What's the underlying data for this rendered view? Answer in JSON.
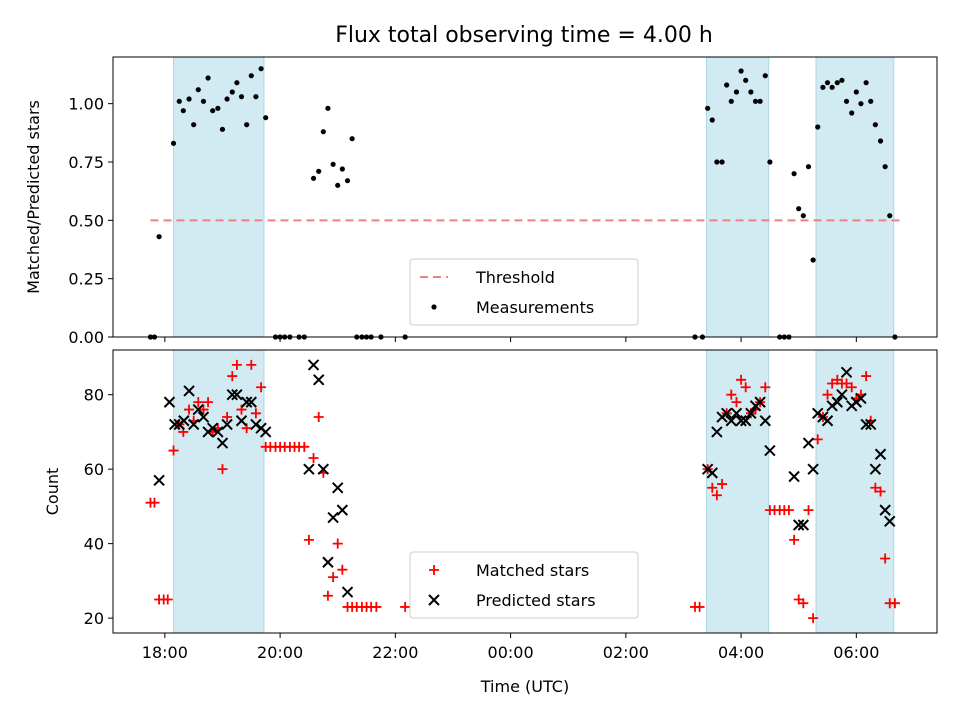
{
  "figure": {
    "title": "Flux total observing time = 4.00 h"
  },
  "colors": {
    "band": "#add8e6",
    "threshold": "#f08080",
    "measurement": "#000000",
    "matched": "#ff0000",
    "predicted": "#000000"
  },
  "chart_data": [
    {
      "type": "scatter",
      "panel": "top",
      "title": "Flux total observing time = 4.00 h",
      "ylabel": "Matched/Predicted stars",
      "xlabel": "",
      "x_unit": "hours since 00:00 UTC (negative = previous day)",
      "xlim": [
        -6.9,
        7.4
      ],
      "ylim": [
        0,
        1.2
      ],
      "yticks": [
        "0.00",
        "0.25",
        "0.50",
        "0.75",
        "1.00"
      ],
      "ytick_values": [
        0,
        0.25,
        0.5,
        0.75,
        1.0
      ],
      "legend": {
        "placement": "lower-center",
        "entries": [
          "Threshold",
          "Measurements"
        ]
      },
      "shaded_intervals": [
        [
          -5.85,
          -4.28
        ],
        [
          3.4,
          4.48
        ],
        [
          5.3,
          6.65
        ]
      ],
      "threshold": {
        "name": "Threshold",
        "y": 0.5,
        "x_range": [
          -6.25,
          6.75
        ]
      },
      "series": [
        {
          "name": "Measurements",
          "points": [
            [
              -6.25,
              0
            ],
            [
              -6.18,
              0
            ],
            [
              -6.1,
              0.43
            ],
            [
              -5.85,
              0.83
            ],
            [
              -5.75,
              1.01
            ],
            [
              -5.68,
              0.97
            ],
            [
              -5.58,
              1.02
            ],
            [
              -5.5,
              0.91
            ],
            [
              -5.42,
              1.06
            ],
            [
              -5.33,
              1.01
            ],
            [
              -5.25,
              1.11
            ],
            [
              -5.17,
              0.97
            ],
            [
              -5.08,
              0.98
            ],
            [
              -5.0,
              0.89
            ],
            [
              -4.92,
              1.02
            ],
            [
              -4.83,
              1.05
            ],
            [
              -4.75,
              1.09
            ],
            [
              -4.67,
              1.03
            ],
            [
              -4.58,
              0.91
            ],
            [
              -4.5,
              1.12
            ],
            [
              -4.42,
              1.03
            ],
            [
              -4.33,
              1.15
            ],
            [
              -4.25,
              0.94
            ],
            [
              -4.08,
              0
            ],
            [
              -4.0,
              0
            ],
            [
              -3.92,
              0
            ],
            [
              -3.83,
              0
            ],
            [
              -3.67,
              0
            ],
            [
              -3.58,
              0
            ],
            [
              -3.42,
              0.68
            ],
            [
              -3.33,
              0.71
            ],
            [
              -3.25,
              0.88
            ],
            [
              -3.17,
              0.98
            ],
            [
              -3.08,
              0.74
            ],
            [
              -3.0,
              0.65
            ],
            [
              -2.92,
              0.72
            ],
            [
              -2.83,
              0.67
            ],
            [
              -2.75,
              0.85
            ],
            [
              -2.67,
              0
            ],
            [
              -2.58,
              0
            ],
            [
              -2.5,
              0
            ],
            [
              -2.42,
              0
            ],
            [
              -2.25,
              0
            ],
            [
              -1.83,
              0
            ],
            [
              3.2,
              0
            ],
            [
              3.33,
              0
            ],
            [
              3.42,
              0.98
            ],
            [
              3.5,
              0.93
            ],
            [
              3.58,
              0.75
            ],
            [
              3.67,
              0.75
            ],
            [
              3.75,
              1.08
            ],
            [
              3.83,
              1.01
            ],
            [
              3.92,
              1.05
            ],
            [
              4.0,
              1.14
            ],
            [
              4.08,
              1.1
            ],
            [
              4.17,
              1.05
            ],
            [
              4.25,
              1.01
            ],
            [
              4.33,
              1.01
            ],
            [
              4.42,
              1.12
            ],
            [
              4.5,
              0.75
            ],
            [
              4.67,
              0
            ],
            [
              4.75,
              0
            ],
            [
              4.83,
              0
            ],
            [
              4.92,
              0.7
            ],
            [
              5.0,
              0.55
            ],
            [
              5.08,
              0.52
            ],
            [
              5.17,
              0.73
            ],
            [
              5.25,
              0.33
            ],
            [
              5.33,
              0.9
            ],
            [
              5.42,
              1.07
            ],
            [
              5.5,
              1.09
            ],
            [
              5.58,
              1.07
            ],
            [
              5.67,
              1.09
            ],
            [
              5.75,
              1.1
            ],
            [
              5.83,
              1.01
            ],
            [
              5.92,
              0.96
            ],
            [
              6.0,
              1.05
            ],
            [
              6.08,
              1.0
            ],
            [
              6.17,
              1.09
            ],
            [
              6.25,
              1.01
            ],
            [
              6.33,
              0.91
            ],
            [
              6.42,
              0.84
            ],
            [
              6.5,
              0.73
            ],
            [
              6.58,
              0.52
            ],
            [
              6.67,
              0
            ]
          ]
        }
      ]
    },
    {
      "type": "scatter",
      "panel": "bottom",
      "ylabel": "Count",
      "xlabel": "Time (UTC)",
      "x_unit": "hours since 00:00 UTC (negative = previous day)",
      "xlim": [
        -6.9,
        7.4
      ],
      "ylim": [
        16,
        92
      ],
      "xticks": [
        "18:00",
        "20:00",
        "22:00",
        "00:00",
        "02:00",
        "04:00",
        "06:00"
      ],
      "xtick_values": [
        -6,
        -4,
        -2,
        0,
        2,
        4,
        6
      ],
      "yticks": [
        "20",
        "40",
        "60",
        "80"
      ],
      "ytick_values": [
        20,
        40,
        60,
        80
      ],
      "legend": {
        "placement": "lower-center",
        "entries": [
          "Matched stars",
          "Predicted stars"
        ]
      },
      "shaded_intervals": [
        [
          -5.85,
          -4.28
        ],
        [
          3.4,
          4.48
        ],
        [
          5.3,
          6.65
        ]
      ],
      "series": [
        {
          "name": "Matched stars",
          "marker": "plus",
          "points": [
            [
              -6.25,
              51
            ],
            [
              -6.18,
              51
            ],
            [
              -6.1,
              25
            ],
            [
              -6.02,
              25
            ],
            [
              -5.95,
              25
            ],
            [
              -5.85,
              65
            ],
            [
              -5.75,
              72
            ],
            [
              -5.68,
              70
            ],
            [
              -5.58,
              76
            ],
            [
              -5.5,
              73
            ],
            [
              -5.42,
              78
            ],
            [
              -5.33,
              76
            ],
            [
              -5.25,
              78
            ],
            [
              -5.17,
              70
            ],
            [
              -5.08,
              71
            ],
            [
              -5.0,
              60
            ],
            [
              -4.92,
              74
            ],
            [
              -4.83,
              85
            ],
            [
              -4.75,
              88
            ],
            [
              -4.67,
              76
            ],
            [
              -4.58,
              71
            ],
            [
              -4.5,
              88
            ],
            [
              -4.42,
              75
            ],
            [
              -4.33,
              82
            ],
            [
              -4.25,
              66
            ],
            [
              -4.17,
              66
            ],
            [
              -4.08,
              66
            ],
            [
              -4.0,
              66
            ],
            [
              -3.92,
              66
            ],
            [
              -3.83,
              66
            ],
            [
              -3.75,
              66
            ],
            [
              -3.67,
              66
            ],
            [
              -3.58,
              66
            ],
            [
              -3.5,
              41
            ],
            [
              -3.42,
              63
            ],
            [
              -3.33,
              74
            ],
            [
              -3.25,
              59
            ],
            [
              -3.17,
              26
            ],
            [
              -3.08,
              31
            ],
            [
              -3.0,
              40
            ],
            [
              -2.92,
              33
            ],
            [
              -2.83,
              23
            ],
            [
              -2.75,
              23
            ],
            [
              -2.67,
              23
            ],
            [
              -2.58,
              23
            ],
            [
              -2.5,
              23
            ],
            [
              -2.42,
              23
            ],
            [
              -2.33,
              23
            ],
            [
              -1.83,
              23
            ],
            [
              3.2,
              23
            ],
            [
              3.28,
              23
            ],
            [
              3.42,
              60
            ],
            [
              3.5,
              55
            ],
            [
              3.58,
              53
            ],
            [
              3.67,
              56
            ],
            [
              3.75,
              75
            ],
            [
              3.83,
              80
            ],
            [
              3.92,
              78
            ],
            [
              4.0,
              84
            ],
            [
              4.08,
              82
            ],
            [
              4.17,
              75
            ],
            [
              4.25,
              76
            ],
            [
              4.33,
              78
            ],
            [
              4.42,
              82
            ],
            [
              4.5,
              49
            ],
            [
              4.58,
              49
            ],
            [
              4.67,
              49
            ],
            [
              4.75,
              49
            ],
            [
              4.83,
              49
            ],
            [
              4.92,
              41
            ],
            [
              5.0,
              25
            ],
            [
              5.08,
              24
            ],
            [
              5.17,
              49
            ],
            [
              5.25,
              20
            ],
            [
              5.33,
              68
            ],
            [
              5.42,
              74
            ],
            [
              5.5,
              80
            ],
            [
              5.58,
              83
            ],
            [
              5.67,
              84
            ],
            [
              5.75,
              83
            ],
            [
              5.83,
              83
            ],
            [
              5.92,
              82
            ],
            [
              6.0,
              79
            ],
            [
              6.08,
              80
            ],
            [
              6.17,
              85
            ],
            [
              6.25,
              73
            ],
            [
              6.33,
              55
            ],
            [
              6.42,
              54
            ],
            [
              6.5,
              36
            ],
            [
              6.58,
              24
            ],
            [
              6.67,
              24
            ]
          ]
        },
        {
          "name": "Predicted stars",
          "marker": "x",
          "points": [
            [
              -6.1,
              57
            ],
            [
              -5.92,
              78
            ],
            [
              -5.83,
              72
            ],
            [
              -5.75,
              72
            ],
            [
              -5.67,
              73
            ],
            [
              -5.58,
              81
            ],
            [
              -5.5,
              72
            ],
            [
              -5.42,
              76
            ],
            [
              -5.33,
              74
            ],
            [
              -5.25,
              70
            ],
            [
              -5.17,
              71
            ],
            [
              -5.08,
              70
            ],
            [
              -5.0,
              67
            ],
            [
              -4.92,
              72
            ],
            [
              -4.83,
              80
            ],
            [
              -4.75,
              80
            ],
            [
              -4.67,
              73
            ],
            [
              -4.58,
              78
            ],
            [
              -4.5,
              78
            ],
            [
              -4.42,
              72
            ],
            [
              -4.33,
              71
            ],
            [
              -4.25,
              70
            ],
            [
              -3.5,
              60
            ],
            [
              -3.42,
              88
            ],
            [
              -3.33,
              84
            ],
            [
              -3.25,
              60
            ],
            [
              -3.17,
              35
            ],
            [
              -3.08,
              47
            ],
            [
              -3.0,
              55
            ],
            [
              -2.92,
              49
            ],
            [
              -2.83,
              27
            ],
            [
              3.42,
              60
            ],
            [
              3.5,
              59
            ],
            [
              3.58,
              70
            ],
            [
              3.67,
              74
            ],
            [
              3.75,
              75
            ],
            [
              3.83,
              73
            ],
            [
              3.92,
              75
            ],
            [
              4.0,
              73
            ],
            [
              4.08,
              73
            ],
            [
              4.17,
              75
            ],
            [
              4.25,
              77
            ],
            [
              4.33,
              78
            ],
            [
              4.42,
              73
            ],
            [
              4.5,
              65
            ],
            [
              4.92,
              58
            ],
            [
              5.0,
              45
            ],
            [
              5.08,
              45
            ],
            [
              5.17,
              67
            ],
            [
              5.25,
              60
            ],
            [
              5.33,
              75
            ],
            [
              5.42,
              74
            ],
            [
              5.5,
              73
            ],
            [
              5.58,
              77
            ],
            [
              5.67,
              78
            ],
            [
              5.75,
              80
            ],
            [
              5.83,
              86
            ],
            [
              5.92,
              77
            ],
            [
              6.0,
              78
            ],
            [
              6.08,
              79
            ],
            [
              6.17,
              72
            ],
            [
              6.25,
              72
            ],
            [
              6.33,
              60
            ],
            [
              6.42,
              64
            ],
            [
              6.5,
              49
            ],
            [
              6.58,
              46
            ]
          ]
        }
      ]
    }
  ]
}
